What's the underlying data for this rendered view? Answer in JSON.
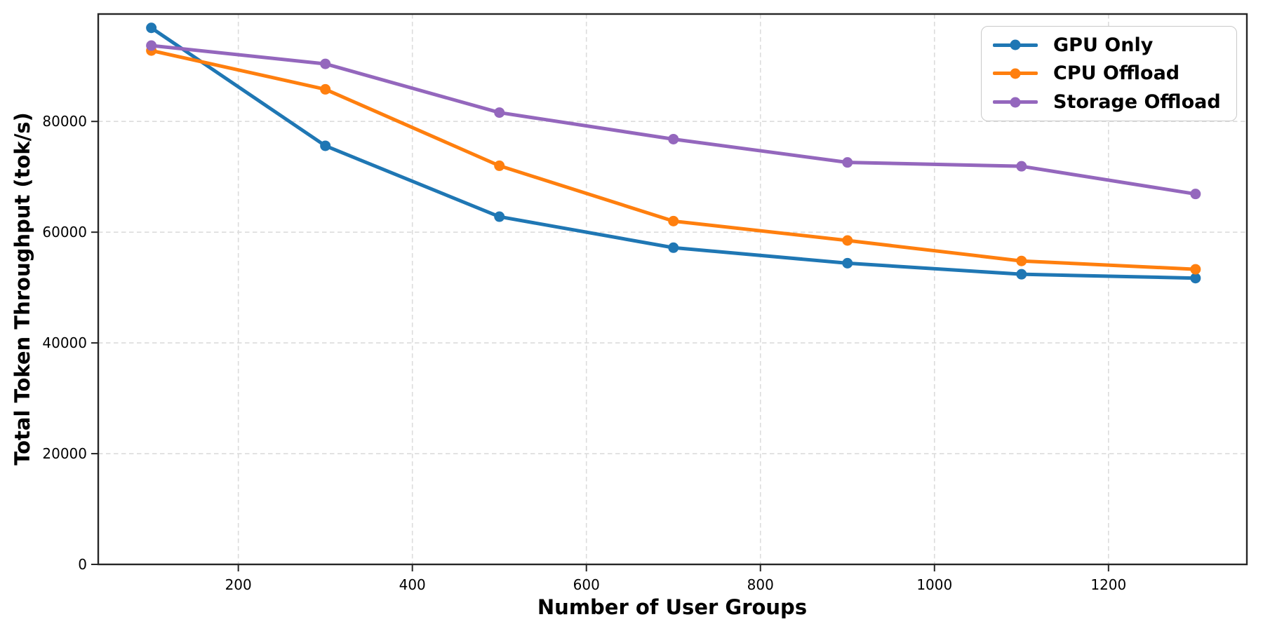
{
  "chart_data": {
    "type": "line",
    "title": "",
    "xlabel": "Number of User Groups",
    "ylabel": "Total Token Throughput (tok/s)",
    "x": [
      100,
      300,
      500,
      700,
      900,
      1100,
      1300
    ],
    "series": [
      {
        "name": "GPU Only",
        "color": "#1f77b4",
        "values": [
          96900,
          75600,
          62800,
          57200,
          54400,
          52400,
          51700
        ]
      },
      {
        "name": "CPU Offload",
        "color": "#ff7f0e",
        "values": [
          92800,
          85800,
          72000,
          62000,
          58500,
          54800,
          53300
        ]
      },
      {
        "name": "Storage Offload",
        "color": "#9467bd",
        "values": [
          93700,
          90400,
          81600,
          76800,
          72600,
          71900,
          66900
        ]
      }
    ],
    "xticks": [
      200,
      400,
      600,
      800,
      1000,
      1200
    ],
    "yticks": [
      0,
      20000,
      40000,
      60000,
      80000
    ],
    "xlim": [
      39,
      1359
    ],
    "ylim": [
      0,
      99400
    ],
    "grid": true,
    "grid_style": "dashed",
    "legend_position": "upper right",
    "marker": "circle",
    "style": {
      "grid_color": "#dcdcdc",
      "spine_color": "#262626",
      "tick_color": "#262626",
      "text_color": "#000000",
      "line_width": 5,
      "marker_radius": 7.5
    }
  }
}
